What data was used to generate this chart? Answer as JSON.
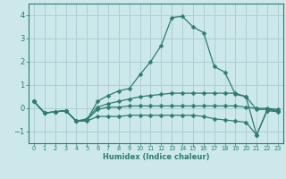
{
  "xlabel": "Humidex (Indice chaleur)",
  "x": [
    0,
    1,
    2,
    3,
    4,
    5,
    6,
    7,
    8,
    9,
    10,
    11,
    12,
    13,
    14,
    15,
    16,
    17,
    18,
    19,
    20,
    21,
    22,
    23
  ],
  "line1": [
    0.3,
    -0.2,
    -0.15,
    -0.1,
    -0.55,
    -0.5,
    0.3,
    0.55,
    0.75,
    0.85,
    1.45,
    2.0,
    2.7,
    3.9,
    3.95,
    3.5,
    3.25,
    1.8,
    1.55,
    0.6,
    0.5,
    -1.15,
    -0.05,
    -0.1
  ],
  "line2": [
    0.3,
    -0.2,
    -0.15,
    -0.1,
    -0.55,
    -0.45,
    0.05,
    0.2,
    0.3,
    0.4,
    0.5,
    0.55,
    0.6,
    0.65,
    0.65,
    0.65,
    0.65,
    0.65,
    0.65,
    0.65,
    0.5,
    -0.05,
    -0.05,
    -0.1
  ],
  "line3": [
    0.3,
    -0.2,
    -0.15,
    -0.1,
    -0.55,
    -0.55,
    -0.35,
    -0.35,
    -0.35,
    -0.3,
    -0.3,
    -0.3,
    -0.3,
    -0.3,
    -0.3,
    -0.3,
    -0.35,
    -0.45,
    -0.5,
    -0.55,
    -0.6,
    -1.15,
    -0.1,
    -0.15
  ],
  "line4": [
    0.3,
    -0.2,
    -0.15,
    -0.1,
    -0.55,
    -0.5,
    -0.05,
    0.05,
    0.05,
    0.1,
    0.1,
    0.1,
    0.1,
    0.1,
    0.1,
    0.1,
    0.1,
    0.1,
    0.1,
    0.1,
    0.05,
    0.0,
    0.0,
    -0.05
  ],
  "line_color": "#2e7d6e",
  "bg_color": "#cce8eb",
  "grid_color": "#aecfd4",
  "ylim": [
    -1.5,
    4.5
  ],
  "yticks": [
    -1,
    0,
    1,
    2,
    3,
    4
  ],
  "markersize": 2.5
}
